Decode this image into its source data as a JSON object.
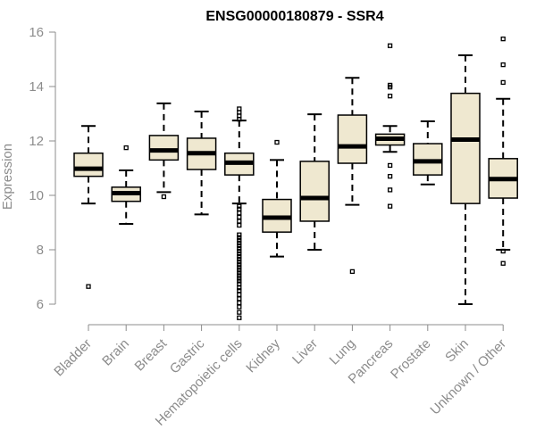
{
  "chart_data": {
    "type": "boxplot",
    "title": "ENSG00000180879 - SSR4",
    "xlabel": "",
    "ylabel": "Expression",
    "ylim": [
      5.2,
      16.2
    ],
    "yticks": [
      6,
      8,
      10,
      12,
      14,
      16
    ],
    "box_color": "#efe8d0",
    "categories": [
      "Bladder",
      "Brain",
      "Breast",
      "Gastric",
      "Hematopoietic cells",
      "Kidney",
      "Liver",
      "Lung",
      "Pancreas",
      "Prostate",
      "Skin",
      "Unknown / Other"
    ],
    "boxes": [
      {
        "name": "Bladder",
        "whisker_low": 9.7,
        "q1": 10.7,
        "median": 10.98,
        "q3": 11.55,
        "whisker_high": 12.55,
        "outliers": [
          6.65
        ]
      },
      {
        "name": "Brain",
        "whisker_low": 8.95,
        "q1": 9.78,
        "median": 10.08,
        "q3": 10.3,
        "whisker_high": 10.92,
        "outliers": [
          11.75
        ]
      },
      {
        "name": "Breast",
        "whisker_low": 10.12,
        "q1": 11.3,
        "median": 11.65,
        "q3": 12.2,
        "whisker_high": 13.38,
        "outliers": [
          9.95
        ]
      },
      {
        "name": "Gastric",
        "whisker_low": 9.3,
        "q1": 10.95,
        "median": 11.55,
        "q3": 12.1,
        "whisker_high": 13.08,
        "outliers": []
      },
      {
        "name": "Hematopoietic cells",
        "whisker_low": 9.7,
        "q1": 10.75,
        "median": 11.2,
        "q3": 11.55,
        "whisker_high": 12.75,
        "outliers": [
          5.5,
          5.7,
          5.9,
          6.05,
          6.2,
          6.35,
          6.5,
          6.6,
          6.75,
          6.85,
          6.95,
          7.05,
          7.15,
          7.25,
          7.35,
          7.45,
          7.55,
          7.65,
          7.75,
          7.85,
          7.95,
          8.05,
          8.15,
          8.25,
          8.35,
          8.45,
          8.55,
          8.9,
          9.05,
          9.2,
          9.35,
          9.5,
          9.6,
          12.8,
          12.92,
          13.05,
          13.18
        ]
      },
      {
        "name": "Kidney",
        "whisker_low": 7.75,
        "q1": 8.65,
        "median": 9.18,
        "q3": 9.85,
        "whisker_high": 11.3,
        "outliers": [
          11.95
        ]
      },
      {
        "name": "Liver",
        "whisker_low": 8.0,
        "q1": 9.05,
        "median": 9.9,
        "q3": 11.25,
        "whisker_high": 12.98,
        "outliers": []
      },
      {
        "name": "Lung",
        "whisker_low": 9.65,
        "q1": 11.18,
        "median": 11.8,
        "q3": 12.95,
        "whisker_high": 14.32,
        "outliers": [
          7.2
        ]
      },
      {
        "name": "Pancreas",
        "whisker_low": 11.6,
        "q1": 11.85,
        "median": 12.08,
        "q3": 12.25,
        "whisker_high": 12.55,
        "outliers": [
          15.5,
          14.05,
          13.98,
          13.65,
          11.1,
          10.7,
          10.2,
          9.6
        ]
      },
      {
        "name": "Prostate",
        "whisker_low": 10.4,
        "q1": 10.75,
        "median": 11.25,
        "q3": 11.9,
        "whisker_high": 12.72,
        "outliers": []
      },
      {
        "name": "Skin",
        "whisker_low": 6.0,
        "q1": 9.7,
        "median": 12.05,
        "q3": 13.75,
        "whisker_high": 15.15,
        "outliers": []
      },
      {
        "name": "Unknown / Other",
        "whisker_low": 8.0,
        "q1": 9.9,
        "median": 10.6,
        "q3": 11.35,
        "whisker_high": 13.55,
        "outliers": [
          15.75,
          14.8,
          14.15,
          7.95,
          7.5
        ]
      }
    ]
  }
}
